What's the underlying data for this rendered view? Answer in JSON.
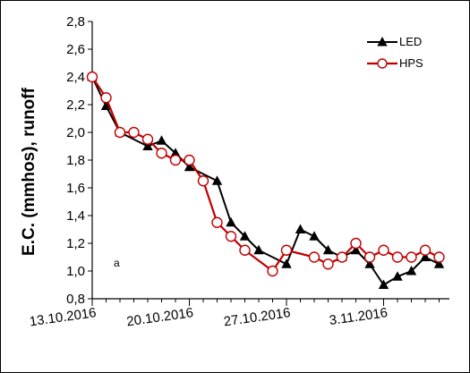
{
  "chart_data": {
    "type": "line",
    "title": "",
    "xlabel": "",
    "ylabel": "E.C. (mmhos), runoff",
    "ylim": [
      0.8,
      2.8
    ],
    "y_ticks": [
      "0,8",
      "1,0",
      "1,2",
      "1,4",
      "1,6",
      "1,8",
      "2,0",
      "2,2",
      "2,4",
      "2,6",
      "2,8"
    ],
    "x_tick_labels": [
      "13.10.2016",
      "20.10.2016",
      "27.10.2016",
      "3.11.2016"
    ],
    "x_ticks_day": [
      0,
      7,
      14,
      21
    ],
    "xlim_day": [
      0,
      25
    ],
    "annotation": "a",
    "legend_position": "top-right",
    "series": [
      {
        "name": "LED",
        "color": "#000000",
        "marker": "filled-triangle",
        "x_day": [
          0,
          1,
          2,
          4,
          5,
          6,
          7,
          9,
          10,
          11,
          12,
          14,
          15,
          16,
          17,
          18,
          19,
          20,
          21,
          22,
          23,
          24,
          25
        ],
        "values": [
          2.4,
          2.19,
          2.0,
          1.9,
          1.94,
          1.85,
          1.75,
          1.65,
          1.35,
          1.25,
          1.15,
          1.05,
          1.3,
          1.25,
          1.15,
          1.1,
          1.15,
          1.05,
          0.9,
          0.96,
          1.0,
          1.1,
          1.05
        ]
      },
      {
        "name": "HPS",
        "color": "#c00000",
        "marker": "open-circle",
        "x_day": [
          0,
          1,
          2,
          3,
          4,
          5,
          6,
          7,
          8,
          9,
          10,
          11,
          13,
          14,
          16,
          17,
          18,
          19,
          20,
          21,
          22,
          23,
          24,
          25
        ],
        "values": [
          2.4,
          2.25,
          2.0,
          2.0,
          1.95,
          1.85,
          1.8,
          1.8,
          1.65,
          1.35,
          1.25,
          1.15,
          1.0,
          1.15,
          1.1,
          1.05,
          1.1,
          1.2,
          1.1,
          1.15,
          1.1,
          1.1,
          1.15,
          1.1
        ]
      }
    ]
  }
}
